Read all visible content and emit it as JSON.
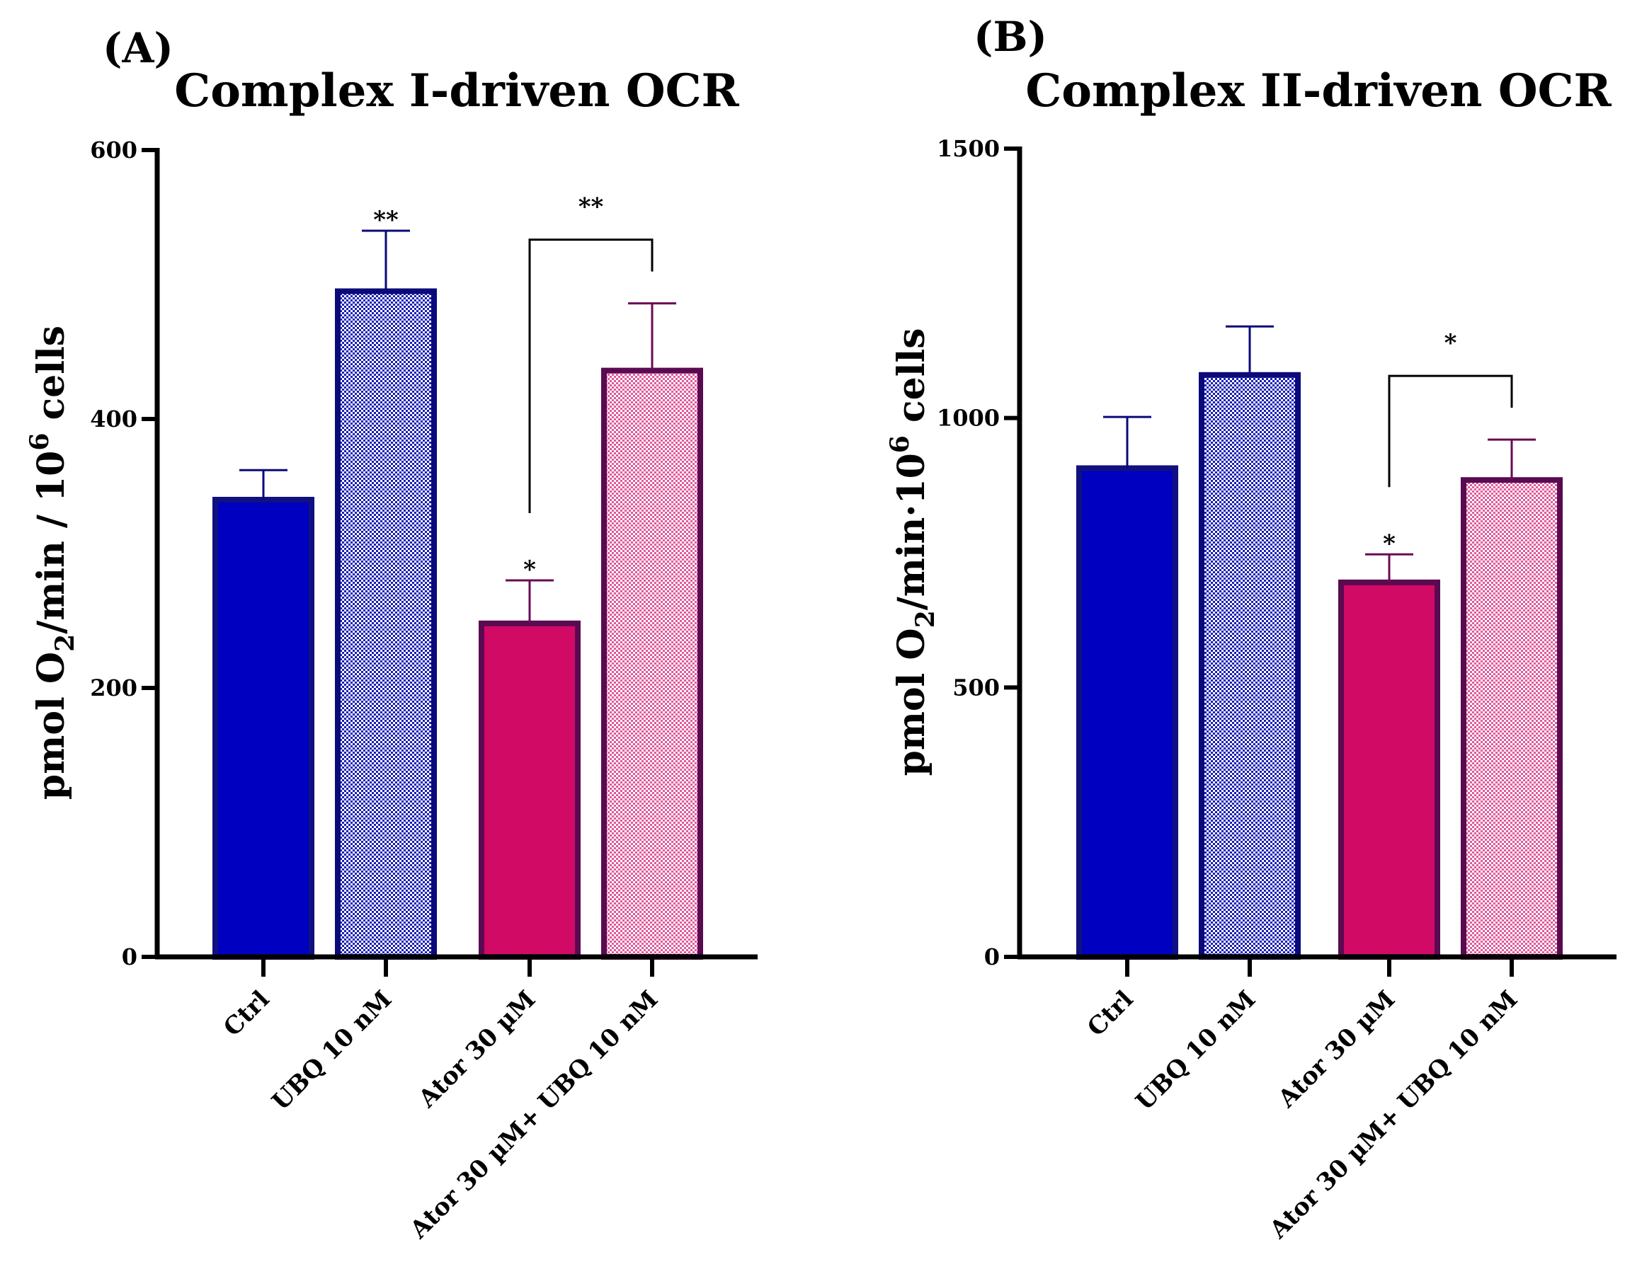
{
  "chart_data": [
    {
      "type": "bar",
      "panel_label": "(A)",
      "title": "Complex I-driven OCR",
      "ylabel": {
        "prefix": "pmol O",
        "sub": "2",
        "mid": "/min / 10",
        "sup": "6",
        "suffix": " cells"
      },
      "ylim": [
        0,
        600
      ],
      "yticks": [
        0,
        200,
        400,
        600
      ],
      "categories": [
        "Ctrl",
        "UBQ 10 nM",
        "Ator 30 µM",
        "Ator 30 µM+ UBQ 10 nM"
      ],
      "values": [
        340,
        495,
        248,
        436
      ],
      "errors": [
        22,
        45,
        32,
        50
      ],
      "bar_styles": [
        "solid",
        "dotted",
        "solid",
        "dotted"
      ],
      "bar_colors": [
        "#0000c0",
        "#1a1fb5",
        "#d10a66",
        "#e05a9a"
      ],
      "edge_colors": [
        "#101080",
        "#0a0a7a",
        "#5a0a50",
        "#5a0a50"
      ],
      "error_colors": [
        "#0a0a7a",
        "#0a0a7a",
        "#6a0a55",
        "#6a0a55"
      ],
      "bar_significance": [
        "",
        "**",
        "*",
        ""
      ],
      "comparisons": [
        {
          "from": 2,
          "to": 3,
          "label": "**"
        }
      ]
    },
    {
      "type": "bar",
      "panel_label": "(B)",
      "title": "Complex II-driven OCR",
      "ylabel": {
        "prefix": "pmol O",
        "sub": "2",
        "mid": "/min·10",
        "sup": "6",
        "suffix": " cells"
      },
      "ylim": [
        0,
        1500
      ],
      "yticks": [
        0,
        500,
        1000,
        1500
      ],
      "categories": [
        "Ctrl",
        "UBQ 10 nM",
        "Ator 30 µM",
        "Ator 30 µM+ UBQ 10 nM"
      ],
      "values": [
        907,
        1080,
        695,
        885
      ],
      "errors": [
        95,
        90,
        52,
        75
      ],
      "bar_styles": [
        "solid",
        "dotted",
        "solid",
        "dotted"
      ],
      "bar_colors": [
        "#0000c0",
        "#1a1fb5",
        "#d10a66",
        "#e05a9a"
      ],
      "edge_colors": [
        "#101080",
        "#0a0a7a",
        "#5a0a50",
        "#5a0a50"
      ],
      "error_colors": [
        "#0a0a7a",
        "#0a0a7a",
        "#6a0a55",
        "#6a0a55"
      ],
      "bar_significance": [
        "",
        "",
        "*",
        ""
      ],
      "comparisons": [
        {
          "from": 2,
          "to": 3,
          "label": "*"
        }
      ]
    }
  ]
}
